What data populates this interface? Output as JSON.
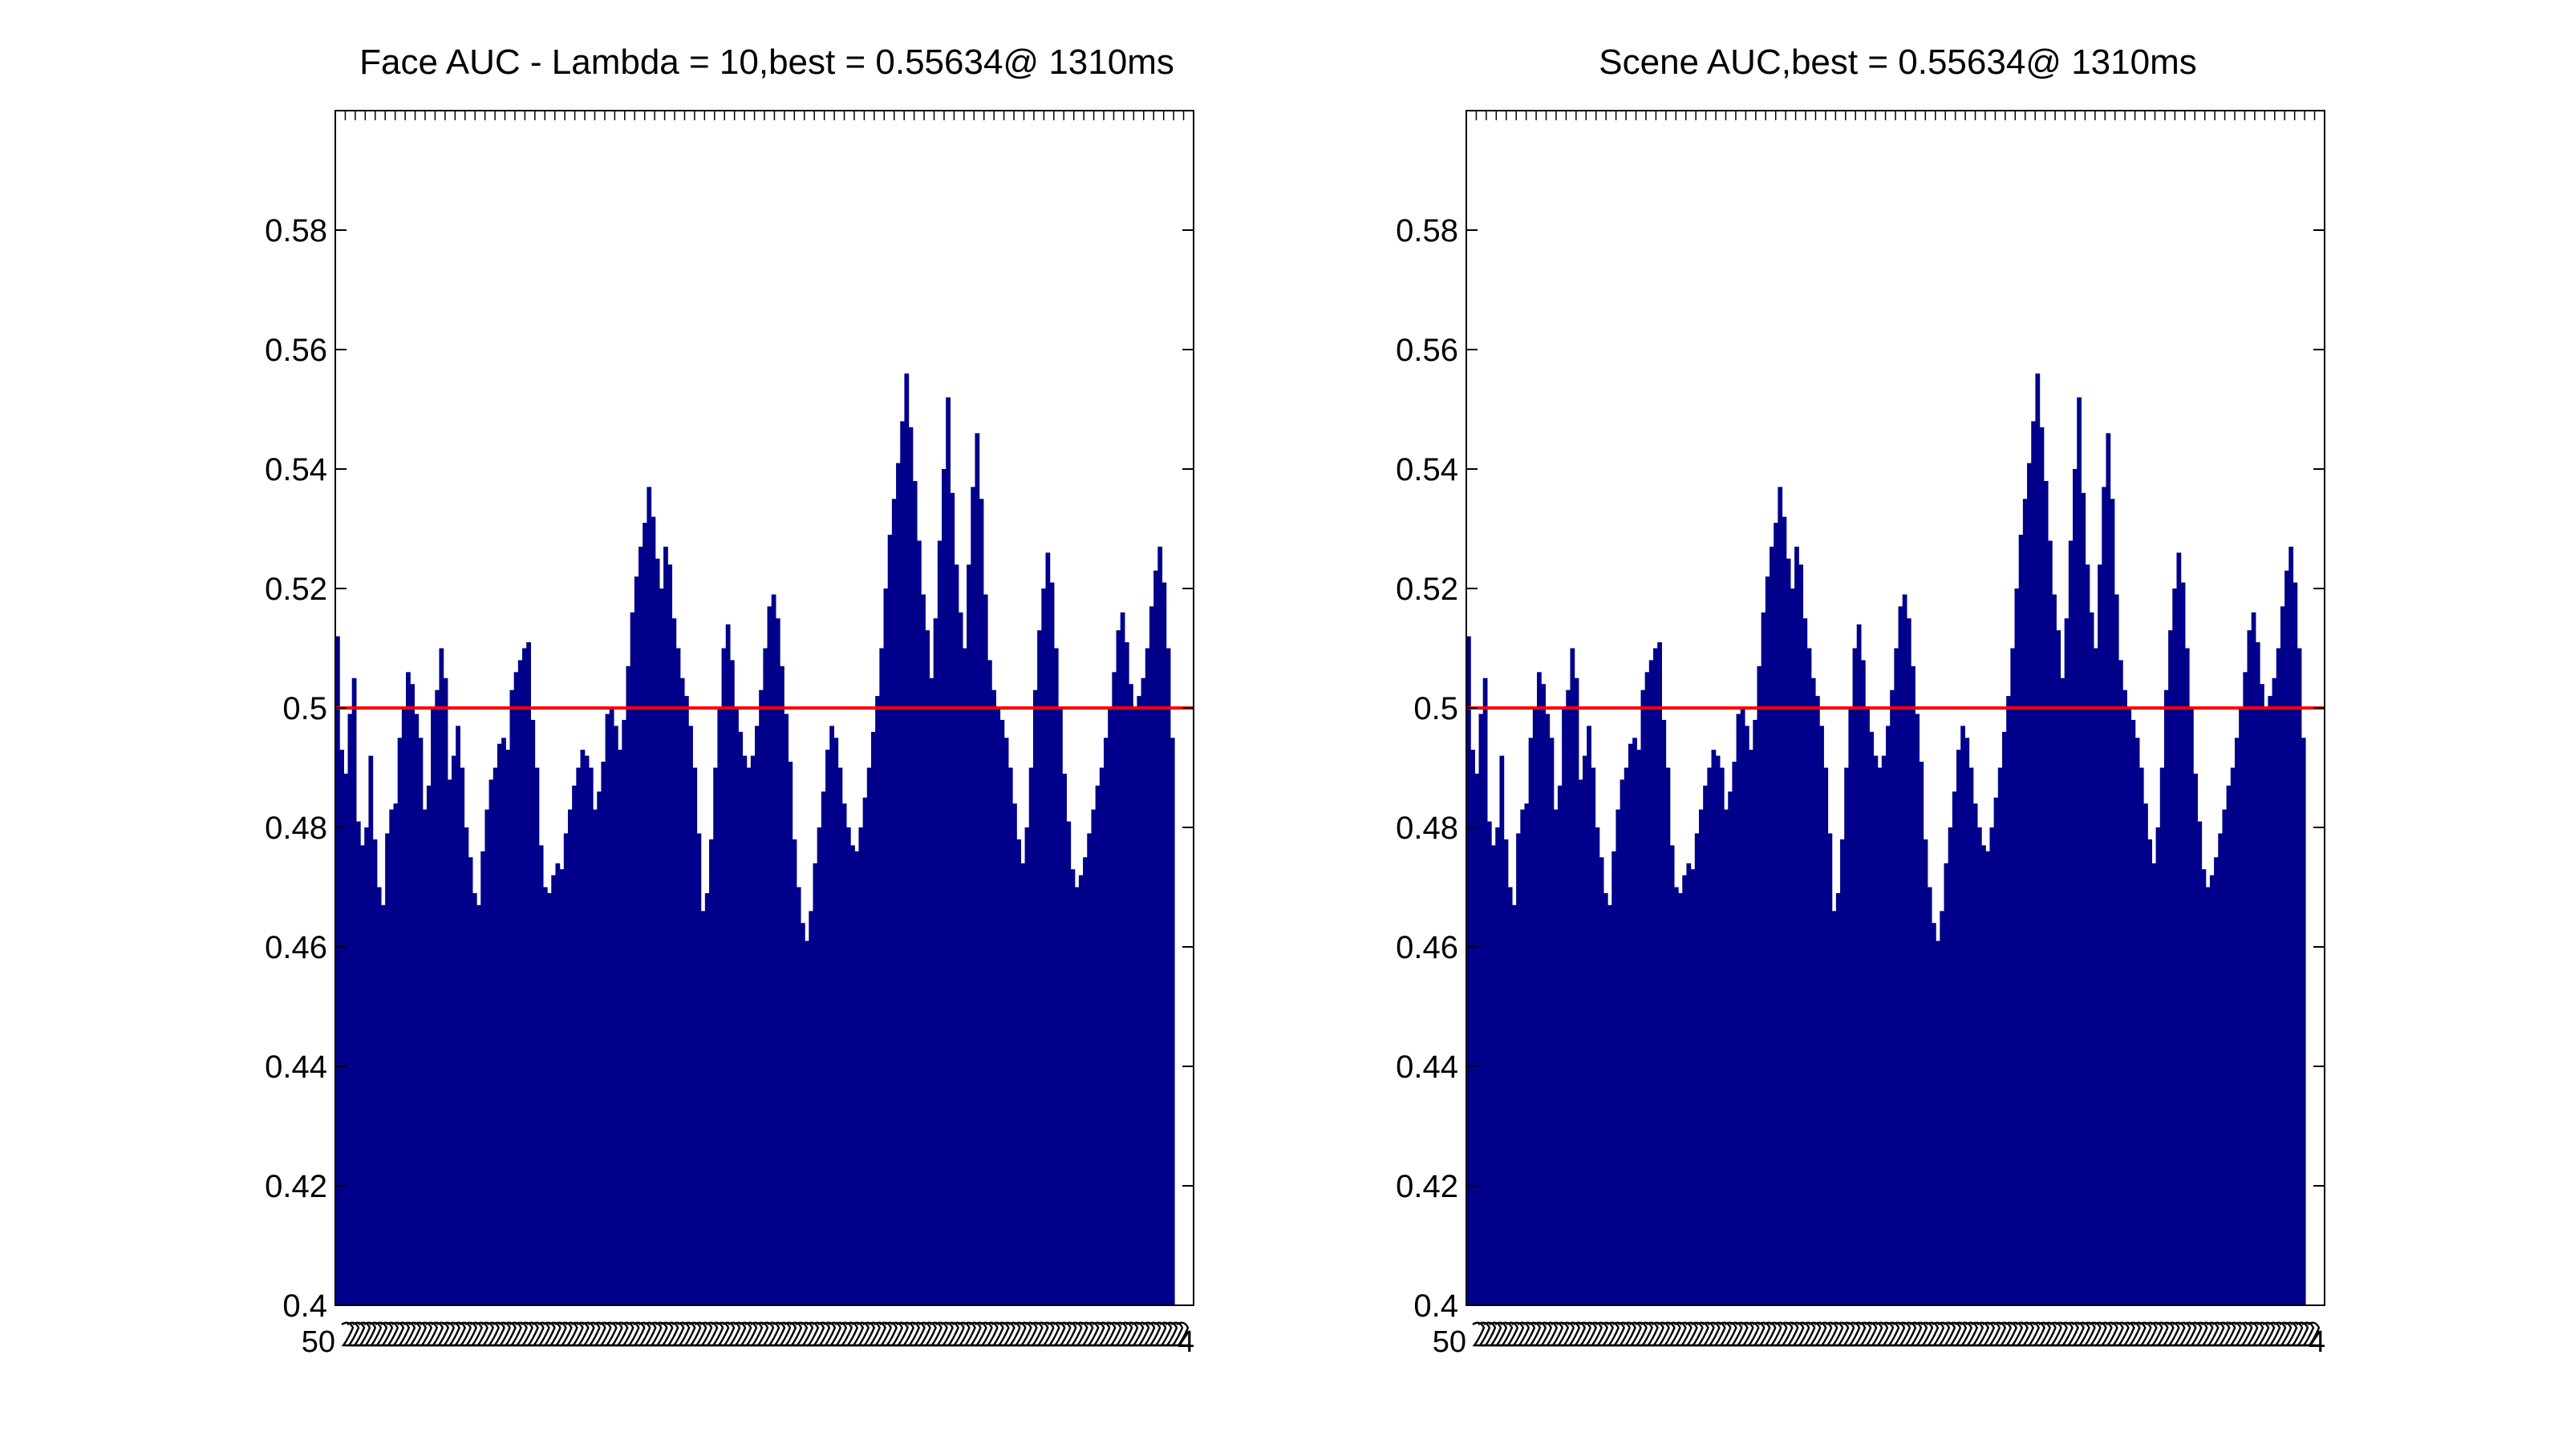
{
  "colors": {
    "bar": "#00008B",
    "reference_line": "#FF0000",
    "axes": "#000000"
  },
  "chart_data": [
    {
      "type": "bar",
      "title": "Face AUC - Lambda = 10,best = 0.55634@ 1310ms",
      "xlabel": "",
      "ylabel": "",
      "ylim": [
        0.4,
        0.6
      ],
      "yticks": [
        "0.4",
        "0.42",
        "0.44",
        "0.46",
        "0.48",
        "0.5",
        "0.52",
        "0.54",
        "0.56",
        "0.58"
      ],
      "xtick_label_first": "50",
      "xtick_label_last": "4",
      "reference_line": 0.5,
      "grid": false,
      "values": [
        0.512,
        0.493,
        0.489,
        0.499,
        0.505,
        0.481,
        0.477,
        0.48,
        0.492,
        0.478,
        0.47,
        0.467,
        0.479,
        0.483,
        0.484,
        0.495,
        0.5,
        0.506,
        0.504,
        0.499,
        0.495,
        0.483,
        0.487,
        0.5,
        0.503,
        0.51,
        0.505,
        0.488,
        0.492,
        0.497,
        0.49,
        0.48,
        0.475,
        0.469,
        0.467,
        0.476,
        0.483,
        0.488,
        0.49,
        0.494,
        0.495,
        0.493,
        0.503,
        0.506,
        0.508,
        0.51,
        0.511,
        0.498,
        0.49,
        0.477,
        0.47,
        0.469,
        0.472,
        0.474,
        0.473,
        0.479,
        0.483,
        0.487,
        0.49,
        0.493,
        0.492,
        0.49,
        0.483,
        0.486,
        0.491,
        0.499,
        0.5,
        0.497,
        0.493,
        0.498,
        0.507,
        0.516,
        0.522,
        0.527,
        0.531,
        0.537,
        0.532,
        0.525,
        0.52,
        0.527,
        0.524,
        0.515,
        0.51,
        0.505,
        0.502,
        0.497,
        0.49,
        0.479,
        0.466,
        0.469,
        0.478,
        0.49,
        0.5,
        0.51,
        0.514,
        0.508,
        0.5,
        0.496,
        0.492,
        0.49,
        0.492,
        0.497,
        0.503,
        0.51,
        0.517,
        0.519,
        0.515,
        0.507,
        0.499,
        0.491,
        0.478,
        0.47,
        0.464,
        0.461,
        0.466,
        0.474,
        0.48,
        0.486,
        0.493,
        0.497,
        0.495,
        0.49,
        0.484,
        0.48,
        0.477,
        0.476,
        0.48,
        0.485,
        0.49,
        0.496,
        0.502,
        0.51,
        0.52,
        0.529,
        0.535,
        0.541,
        0.548,
        0.556,
        0.547,
        0.538,
        0.528,
        0.519,
        0.513,
        0.505,
        0.515,
        0.528,
        0.54,
        0.552,
        0.536,
        0.524,
        0.516,
        0.51,
        0.524,
        0.537,
        0.546,
        0.535,
        0.519,
        0.508,
        0.503,
        0.5,
        0.498,
        0.495,
        0.49,
        0.484,
        0.478,
        0.474,
        0.48,
        0.49,
        0.503,
        0.513,
        0.52,
        0.526,
        0.521,
        0.51,
        0.5,
        0.489,
        0.481,
        0.473,
        0.47,
        0.472,
        0.475,
        0.479,
        0.483,
        0.487,
        0.49,
        0.495,
        0.5,
        0.506,
        0.513,
        0.516,
        0.511,
        0.504,
        0.5,
        0.502,
        0.505,
        0.51,
        0.517,
        0.523,
        0.527,
        0.521,
        0.51,
        0.495
      ]
    },
    {
      "type": "bar",
      "title": "Scene AUC,best = 0.55634@ 1310ms",
      "xlabel": "",
      "ylabel": "",
      "ylim": [
        0.4,
        0.6
      ],
      "yticks": [
        "0.4",
        "0.42",
        "0.44",
        "0.46",
        "0.48",
        "0.5",
        "0.52",
        "0.54",
        "0.56",
        "0.58"
      ],
      "xtick_label_first": "50",
      "xtick_label_last": "4",
      "reference_line": 0.5,
      "grid": false,
      "values": [
        0.512,
        0.493,
        0.489,
        0.499,
        0.505,
        0.481,
        0.477,
        0.48,
        0.492,
        0.478,
        0.47,
        0.467,
        0.479,
        0.483,
        0.484,
        0.495,
        0.5,
        0.506,
        0.504,
        0.499,
        0.495,
        0.483,
        0.487,
        0.5,
        0.503,
        0.51,
        0.505,
        0.488,
        0.492,
        0.497,
        0.49,
        0.48,
        0.475,
        0.469,
        0.467,
        0.476,
        0.483,
        0.488,
        0.49,
        0.494,
        0.495,
        0.493,
        0.503,
        0.506,
        0.508,
        0.51,
        0.511,
        0.498,
        0.49,
        0.477,
        0.47,
        0.469,
        0.472,
        0.474,
        0.473,
        0.479,
        0.483,
        0.487,
        0.49,
        0.493,
        0.492,
        0.49,
        0.483,
        0.486,
        0.491,
        0.499,
        0.5,
        0.497,
        0.493,
        0.498,
        0.507,
        0.516,
        0.522,
        0.527,
        0.531,
        0.537,
        0.532,
        0.525,
        0.52,
        0.527,
        0.524,
        0.515,
        0.51,
        0.505,
        0.502,
        0.497,
        0.49,
        0.479,
        0.466,
        0.469,
        0.478,
        0.49,
        0.5,
        0.51,
        0.514,
        0.508,
        0.5,
        0.496,
        0.492,
        0.49,
        0.492,
        0.497,
        0.503,
        0.51,
        0.517,
        0.519,
        0.515,
        0.507,
        0.499,
        0.491,
        0.478,
        0.47,
        0.464,
        0.461,
        0.466,
        0.474,
        0.48,
        0.486,
        0.493,
        0.497,
        0.495,
        0.49,
        0.484,
        0.48,
        0.477,
        0.476,
        0.48,
        0.485,
        0.49,
        0.496,
        0.502,
        0.51,
        0.52,
        0.529,
        0.535,
        0.541,
        0.548,
        0.556,
        0.547,
        0.538,
        0.528,
        0.519,
        0.513,
        0.505,
        0.515,
        0.528,
        0.54,
        0.552,
        0.536,
        0.524,
        0.516,
        0.51,
        0.524,
        0.537,
        0.546,
        0.535,
        0.519,
        0.508,
        0.503,
        0.5,
        0.498,
        0.495,
        0.49,
        0.484,
        0.478,
        0.474,
        0.48,
        0.49,
        0.503,
        0.513,
        0.52,
        0.526,
        0.521,
        0.51,
        0.5,
        0.489,
        0.481,
        0.473,
        0.47,
        0.472,
        0.475,
        0.479,
        0.483,
        0.487,
        0.49,
        0.495,
        0.5,
        0.506,
        0.513,
        0.516,
        0.511,
        0.504,
        0.5,
        0.502,
        0.505,
        0.51,
        0.517,
        0.523,
        0.527,
        0.521,
        0.51,
        0.495
      ]
    }
  ]
}
